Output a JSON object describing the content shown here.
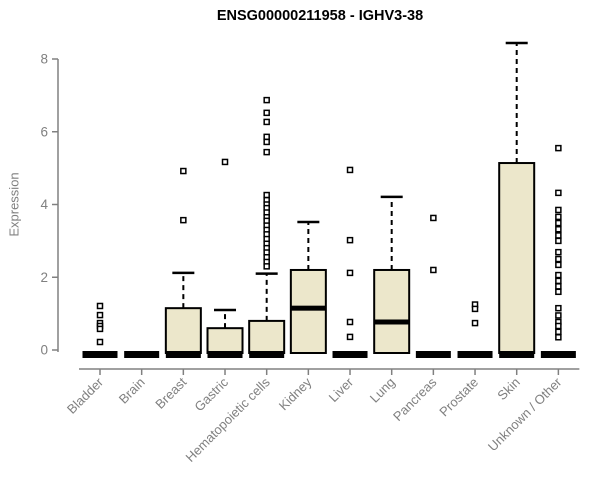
{
  "chart_data": {
    "type": "boxplot",
    "title": "ENSG00000211958 - IGHV3-38",
    "ylabel": "Expression",
    "xlabel": "",
    "yticks": [
      0,
      2,
      4,
      6,
      8
    ],
    "ylim": [
      0,
      8.5
    ],
    "grid": false,
    "legend": "none",
    "categories": [
      "Bladder",
      "Brain",
      "Breast",
      "Gastric",
      "Hematopoietic cells",
      "Kidney",
      "Liver",
      "Lung",
      "Pancreas",
      "Prostate",
      "Skin",
      "Unknown / Other"
    ],
    "boxes": [
      {
        "label": "Bladder",
        "q1": 0,
        "median": 0,
        "q3": 0,
        "whisker_low": 0,
        "whisker_high": 0,
        "outliers": [
          1.21,
          0.96,
          0.74,
          0.66,
          0.58,
          0.22
        ]
      },
      {
        "label": "Brain",
        "q1": 0,
        "median": 0,
        "q3": 0,
        "whisker_low": 0,
        "whisker_high": 0,
        "outliers": []
      },
      {
        "label": "Breast",
        "q1": 0,
        "median": 0.03,
        "q3": 1.15,
        "whisker_low": 0,
        "whisker_high": 2.12,
        "outliers": [
          4.92,
          3.57
        ]
      },
      {
        "label": "Gastric",
        "q1": 0,
        "median": 0.03,
        "q3": 0.6,
        "whisker_low": 0,
        "whisker_high": 1.1,
        "outliers": [
          5.17
        ]
      },
      {
        "label": "Hematopoietic cells",
        "q1": 0,
        "median": 0.04,
        "q3": 0.8,
        "whisker_low": 0,
        "whisker_high": 2.1,
        "outliers": [
          6.87,
          6.52,
          6.27,
          5.86,
          5.72,
          5.44,
          4.26,
          4.12,
          4.0,
          3.9,
          3.78,
          3.65,
          3.55,
          3.42,
          3.3,
          3.18,
          3.05,
          2.92,
          2.8,
          2.68,
          2.55,
          2.42,
          2.3
        ]
      },
      {
        "label": "Kidney",
        "q1": 0,
        "median": 1.15,
        "q3": 2.2,
        "whisker_low": 0,
        "whisker_high": 3.52,
        "outliers": []
      },
      {
        "label": "Liver",
        "q1": 0,
        "median": 0,
        "q3": 0,
        "whisker_low": 0,
        "whisker_high": 0,
        "outliers": [
          4.95,
          3.02,
          2.12,
          0.77,
          0.36
        ]
      },
      {
        "label": "Lung",
        "q1": 0,
        "median": 0.77,
        "q3": 2.2,
        "whisker_low": 0,
        "whisker_high": 4.21,
        "outliers": []
      },
      {
        "label": "Pancreas",
        "q1": 0,
        "median": 0,
        "q3": 0,
        "whisker_low": 0,
        "whisker_high": 0,
        "outliers": [
          3.63,
          2.2
        ]
      },
      {
        "label": "Prostate",
        "q1": 0,
        "median": 0,
        "q3": 0,
        "whisker_low": 0,
        "whisker_high": 0,
        "outliers": [
          1.25,
          1.13,
          0.74
        ]
      },
      {
        "label": "Skin",
        "q1": 0,
        "median": 0.05,
        "q3": 5.14,
        "whisker_low": 0,
        "whisker_high": 8.44,
        "outliers": []
      },
      {
        "label": "Unknown / Other",
        "q1": 0,
        "median": 0,
        "q3": 0,
        "whisker_low": 0,
        "whisker_high": 0,
        "outliers": [
          5.55,
          4.32,
          3.85,
          3.66,
          3.49,
          3.32,
          3.15,
          3.0,
          2.69,
          2.5,
          2.34,
          2.06,
          1.9,
          1.75,
          1.6,
          1.15,
          0.95,
          0.77,
          0.66,
          0.5,
          0.35
        ]
      }
    ],
    "colors": {
      "box_fill": "#ECE7CB",
      "box_stroke": "#000000",
      "median": "#000000",
      "whisker": "#000000",
      "outlier_stroke": "#000000",
      "outlier_fill": "#ffffff",
      "axis": "#808080",
      "tick_text": "#808080",
      "title_text": "#000000",
      "background": "#ffffff"
    }
  }
}
